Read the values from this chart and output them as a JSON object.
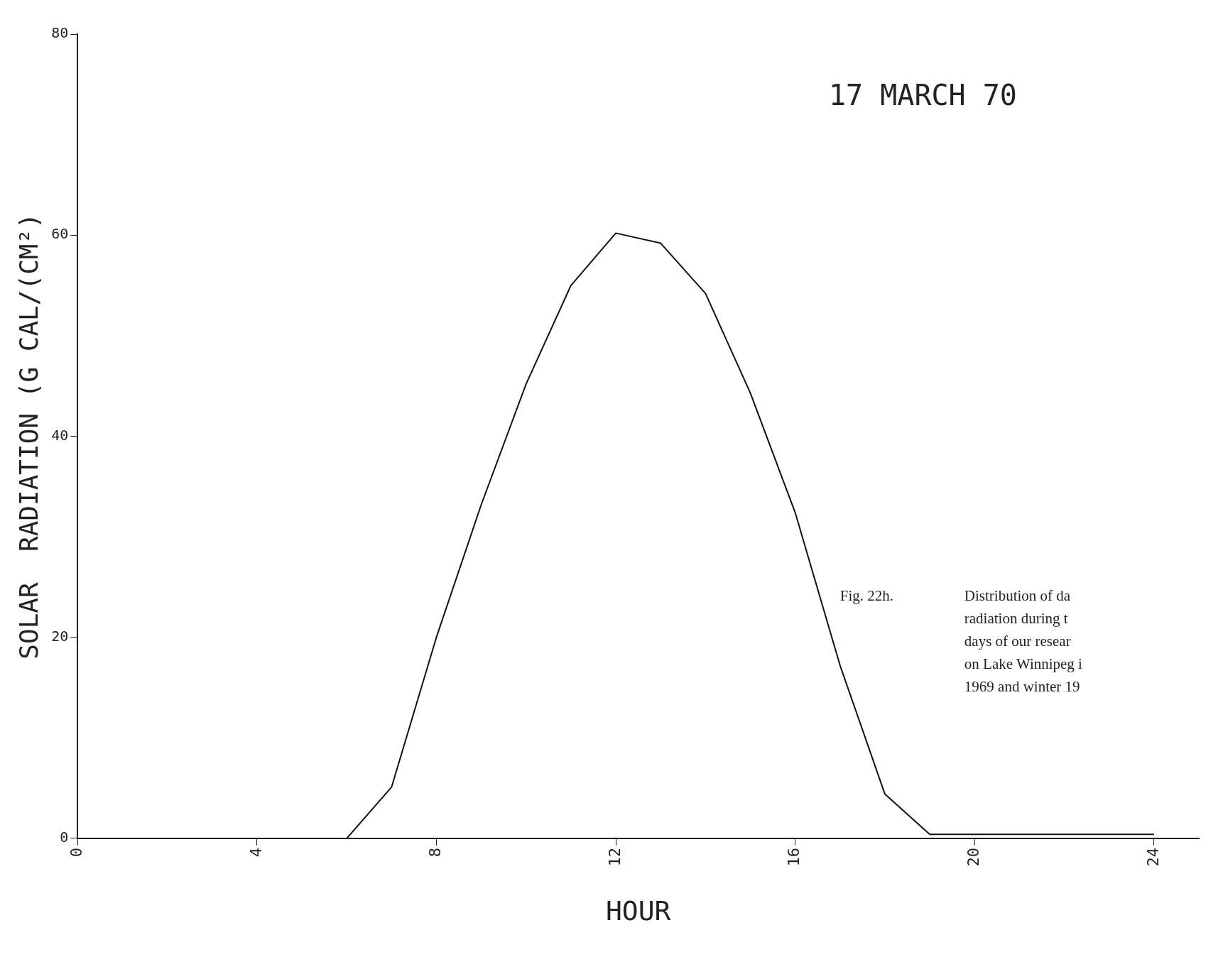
{
  "chart_data": {
    "type": "line",
    "title": "17 MARCH 70",
    "xlabel": "HOUR",
    "ylabel": "SOLAR  RADIATION (G CAL/(CM²)",
    "x": [
      0,
      1,
      2,
      3,
      4,
      5,
      6,
      7,
      8,
      9,
      10,
      11,
      12,
      13,
      14,
      15,
      16,
      17,
      18,
      19,
      20,
      21,
      22,
      23,
      24
    ],
    "series": [
      {
        "color": "#111111",
        "values": [
          0,
          0,
          0,
          0,
          0,
          0,
          0,
          5.1,
          20,
          33.2,
          45.2,
          55,
          60.2,
          59.2,
          54.2,
          44.3,
          32.4,
          17.2,
          4.4,
          0.4,
          0.4,
          0.4,
          0.4,
          0.4,
          0.4
        ]
      }
    ],
    "xlim": [
      0,
      25
    ],
    "xticks": [
      0,
      4,
      8,
      12,
      16,
      20,
      24
    ],
    "ylim": [
      0,
      80
    ],
    "yticks": [
      0,
      20,
      40,
      60,
      80
    ],
    "grid": false,
    "legend": false,
    "marker": "none",
    "line_style": "solid",
    "annotations": [
      "Fig. 22h.",
      "Distribution of da\nradiation during t\ndays of our resear\non Lake Winnipeg i\n1969 and winter 19"
    ]
  }
}
